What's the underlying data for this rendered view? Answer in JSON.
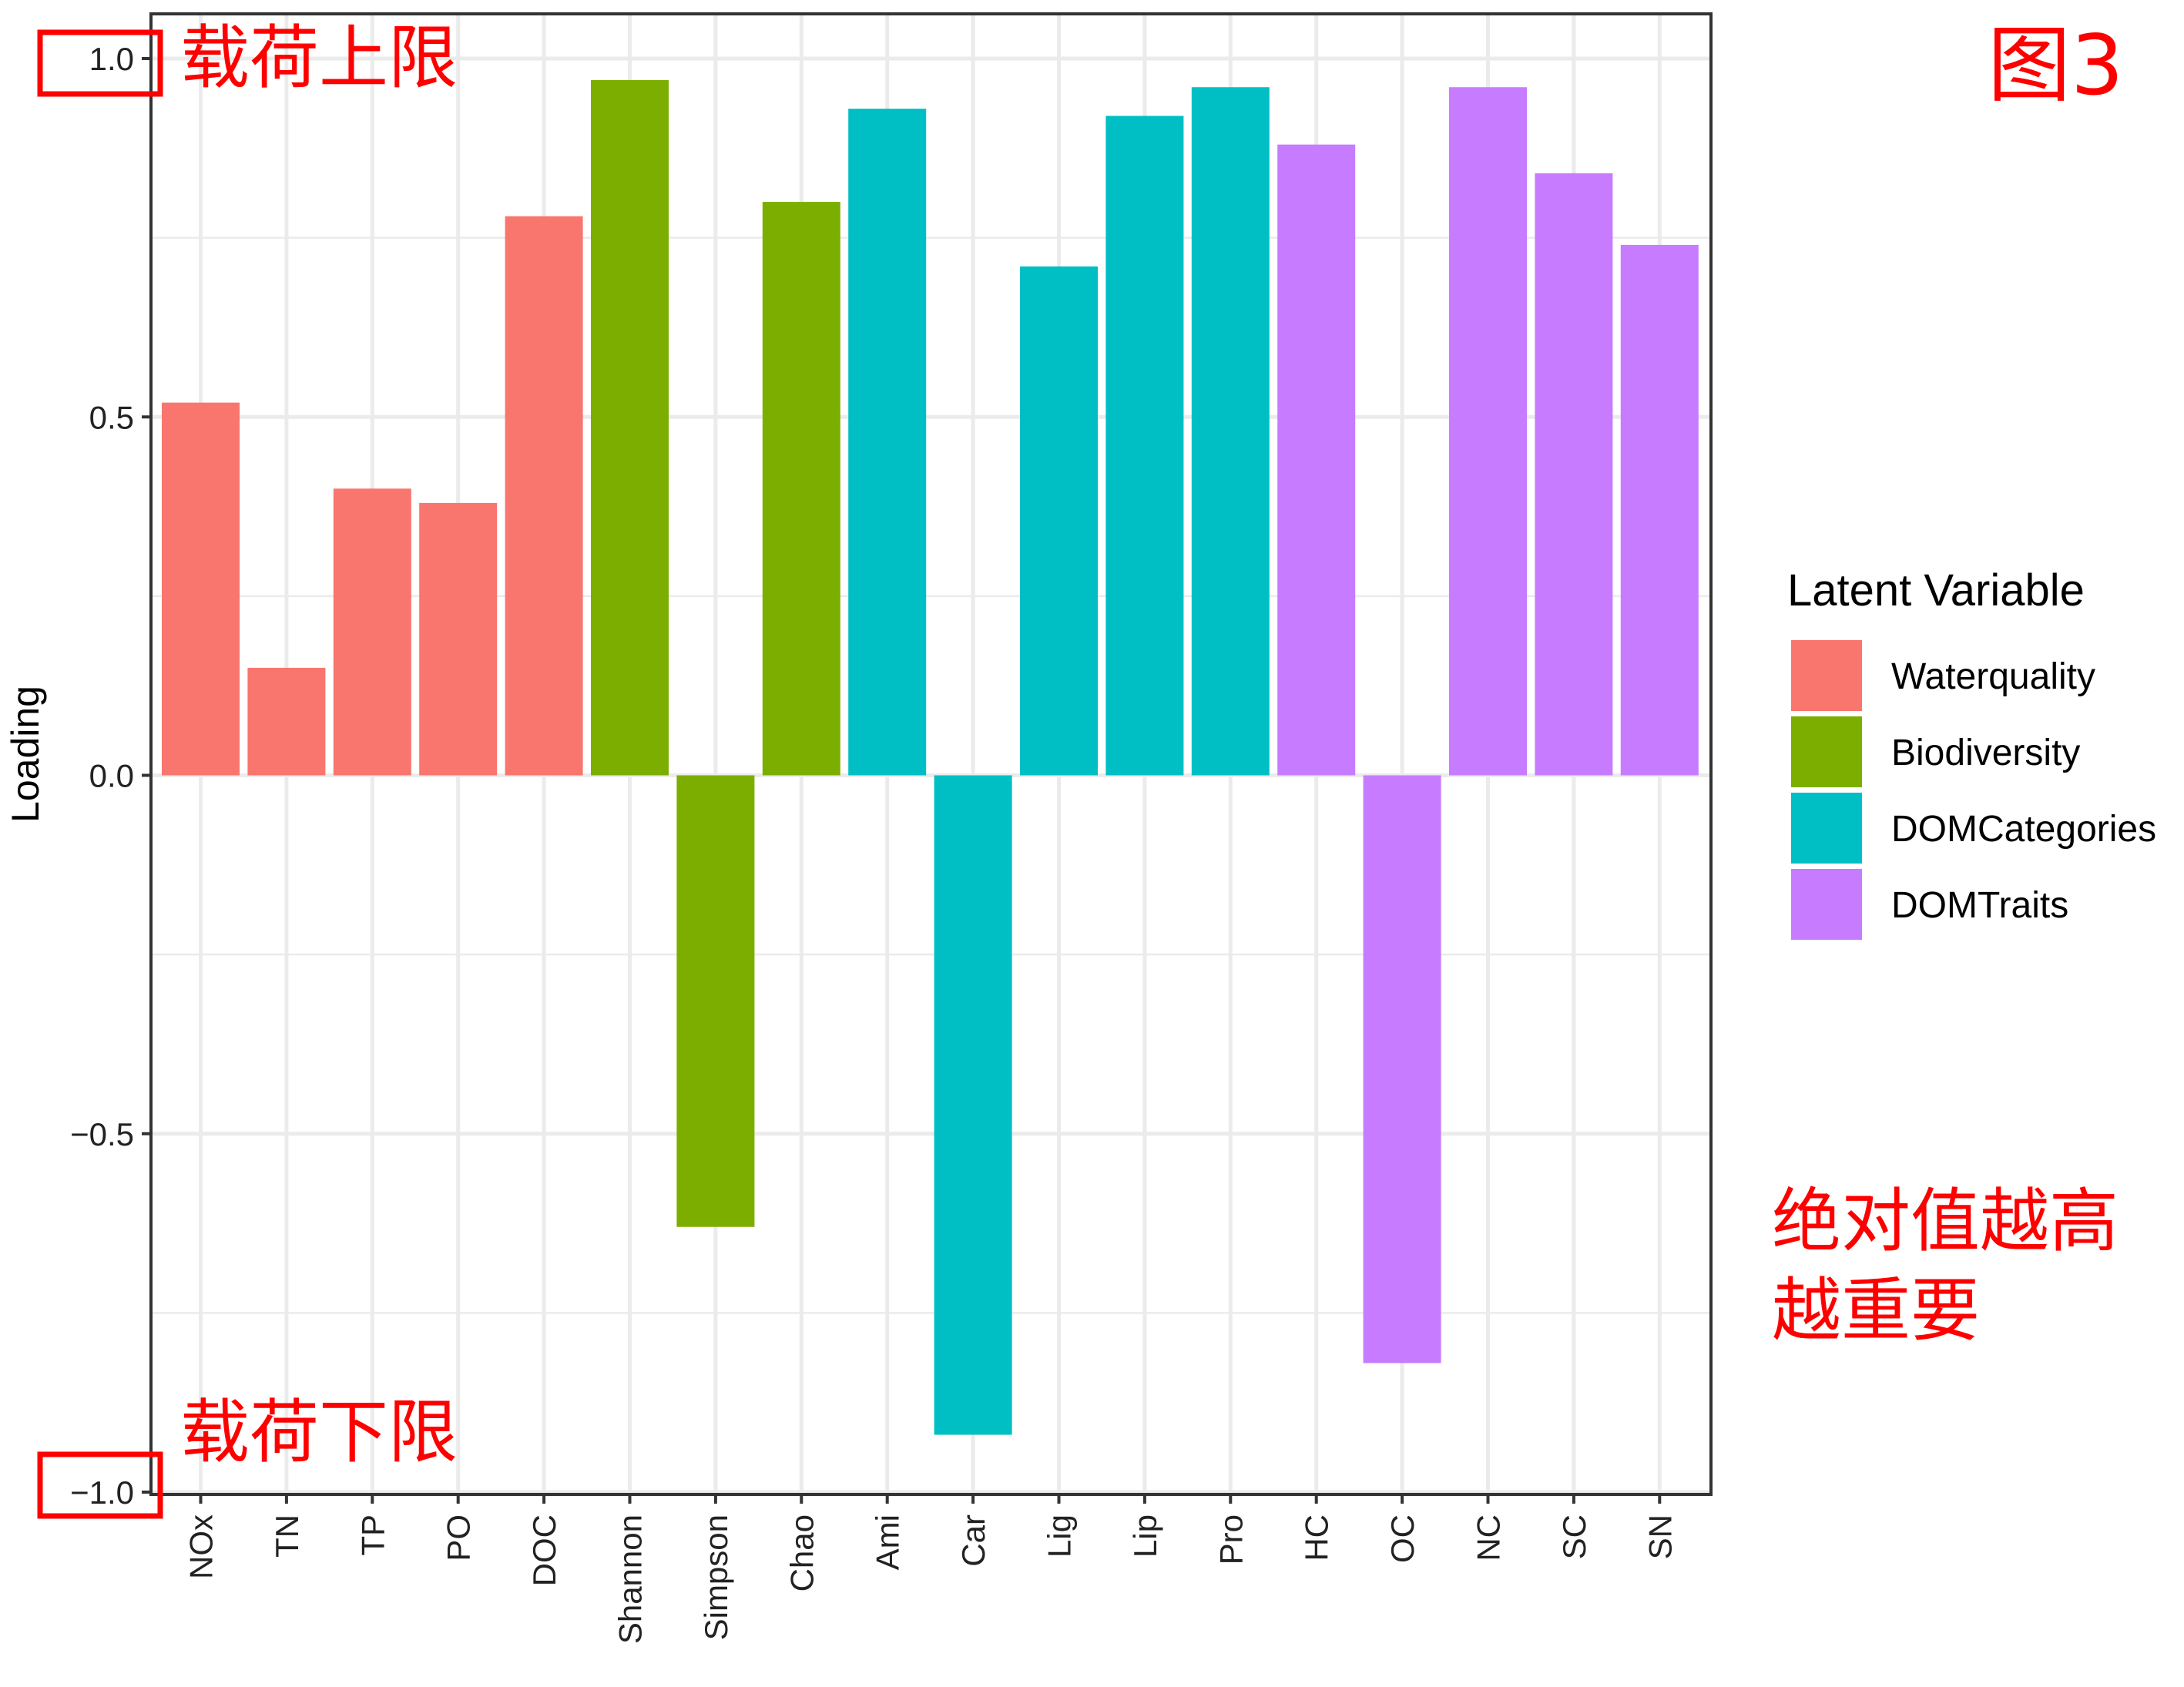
{
  "chart_data": {
    "type": "bar",
    "ylabel": "Loading",
    "xlabel": "",
    "ylim": [
      -1.0,
      1.0
    ],
    "yticks": [
      {
        "value": 1.0,
        "label": "1.0"
      },
      {
        "value": 0.5,
        "label": "0.5"
      },
      {
        "value": 0.0,
        "label": "0.0"
      },
      {
        "value": -0.5,
        "label": "−0.5"
      },
      {
        "value": -1.0,
        "label": "−1.0"
      }
    ],
    "grid": true,
    "categories": [
      "NOx",
      "TN",
      "TP",
      "PO",
      "DOC",
      "Shannon",
      "Simpson",
      "Chao",
      "Ami",
      "Car",
      "Lig",
      "Lip",
      "Pro",
      "HC",
      "OC",
      "NC",
      "SC",
      "SN"
    ],
    "values": [
      0.52,
      0.15,
      0.4,
      0.38,
      0.78,
      0.97,
      -0.63,
      0.8,
      0.93,
      -0.92,
      0.71,
      0.92,
      0.96,
      0.88,
      -0.82,
      0.96,
      0.84,
      0.74
    ],
    "groups": [
      "Waterquality",
      "Waterquality",
      "Waterquality",
      "Waterquality",
      "Waterquality",
      "Biodiversity",
      "Biodiversity",
      "Biodiversity",
      "DOMCategories",
      "DOMCategories",
      "DOMCategories",
      "DOMCategories",
      "DOMCategories",
      "DOMTraits",
      "DOMTraits",
      "DOMTraits",
      "DOMTraits",
      "DOMTraits"
    ],
    "legend": {
      "title": "Latent Variable",
      "position": "right",
      "entries": [
        {
          "name": "Waterquality",
          "color": "#F8766D"
        },
        {
          "name": "Biodiversity",
          "color": "#7CAE00"
        },
        {
          "name": "DOMCategories",
          "color": "#00BFC4"
        },
        {
          "name": "DOMTraits",
          "color": "#C77CFF"
        }
      ]
    }
  },
  "annotations": {
    "upper_limit": "载荷上限",
    "lower_limit": "载荷下限",
    "figure_label": "图3",
    "note_line1": "绝对值越高",
    "note_line2": "越重要",
    "color": "#ff0000"
  }
}
